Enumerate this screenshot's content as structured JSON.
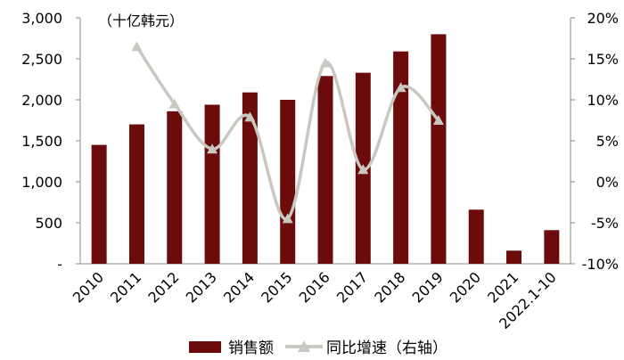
{
  "chart_data": {
    "type": "bar",
    "unit_label": "（十亿韩元）",
    "categories": [
      "2010",
      "2011",
      "2012",
      "2013",
      "2014",
      "2015",
      "2016",
      "2017",
      "2018",
      "2019",
      "2020",
      "2021",
      "2022.1-10"
    ],
    "series": [
      {
        "name": "销售额",
        "type": "bar",
        "axis": "left",
        "color": "#6b0b0b",
        "values": [
          1450,
          1700,
          1860,
          1940,
          2090,
          2000,
          2290,
          2330,
          2590,
          2800,
          660,
          160,
          410
        ]
      },
      {
        "name": "同比增速（右轴）",
        "type": "line",
        "axis": "right",
        "color": "#c8c8c0",
        "marker": "triangle",
        "smooth": true,
        "values": [
          null,
          16.5,
          9.5,
          4.0,
          7.9,
          -4.5,
          14.5,
          1.5,
          11.5,
          7.5,
          null,
          null,
          null
        ]
      }
    ],
    "left_axis": {
      "ylim": [
        0,
        3000
      ],
      "ticks": [
        0,
        500,
        1000,
        1500,
        2000,
        2500,
        3000
      ],
      "tick_labels": [
        "-",
        "500",
        "1,000",
        "1,500",
        "2,000",
        "2,500",
        "3,000"
      ]
    },
    "right_axis": {
      "ylim": [
        -10,
        20
      ],
      "ticks": [
        -10,
        -5,
        0,
        5,
        10,
        15,
        20
      ],
      "tick_labels": [
        "-10%",
        "-5%",
        "0%",
        "5%",
        "10%",
        "15%",
        "20%"
      ]
    },
    "legend": {
      "position": "bottom",
      "items": [
        "销售额",
        "同比增速（右轴）"
      ]
    },
    "grid": false
  }
}
